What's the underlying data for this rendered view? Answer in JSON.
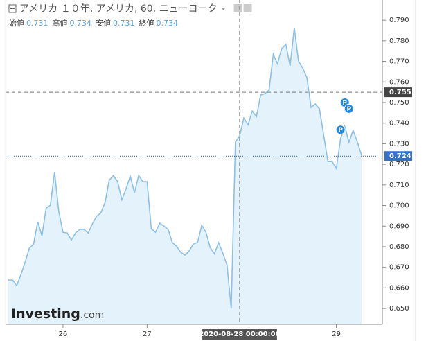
{
  "chart_data": {
    "type": "area",
    "title": "アメリカ １０年, アメリカ, 60, ニューヨーク",
    "ohlc": [
      {
        "name": "始値",
        "value": 0.731
      },
      {
        "name": "高値",
        "value": 0.734
      },
      {
        "name": "安値",
        "value": 0.731
      },
      {
        "name": "終値",
        "value": 0.734
      }
    ],
    "logo": "Investing",
    "logo_suffix": ".com",
    "categories": [
      null,
      null,
      null,
      null,
      null,
      null,
      null,
      null,
      null,
      null,
      null,
      null,
      null,
      "26",
      null,
      null,
      null,
      null,
      null,
      null,
      null,
      null,
      null,
      null,
      null,
      null,
      null,
      null,
      null,
      null,
      null,
      null,
      null,
      "27",
      null,
      null,
      null,
      null,
      null,
      null,
      null,
      null,
      null,
      null,
      null,
      null,
      null,
      null,
      null,
      null,
      null,
      null,
      null,
      null,
      null,
      "2020-08-28 00:00:00",
      null,
      null,
      null,
      null,
      null,
      null,
      null,
      null,
      null,
      null,
      null,
      null,
      null,
      null,
      null,
      null,
      null,
      null,
      null,
      null,
      null,
      null,
      "29",
      null,
      null,
      null,
      null,
      null,
      null
    ],
    "values": [
      0.6638,
      0.6638,
      0.6611,
      0.6665,
      0.6725,
      0.6793,
      0.6813,
      0.6921,
      0.6853,
      0.6988,
      0.7001,
      0.7163,
      0.6971,
      0.687,
      0.6867,
      0.6833,
      0.6867,
      0.6884,
      0.6884,
      0.6867,
      0.6911,
      0.6948,
      0.6964,
      0.7015,
      0.7123,
      0.7146,
      0.7116,
      0.7028,
      0.7082,
      0.7143,
      0.7062,
      0.7146,
      0.7116,
      0.7116,
      0.6887,
      0.687,
      0.6914,
      0.69,
      0.6884,
      0.682,
      0.6803,
      0.6773,
      0.6759,
      0.6779,
      0.6813,
      0.682,
      0.6904,
      0.687,
      0.6796,
      0.6766,
      0.682,
      0.6769,
      0.6712,
      0.65,
      0.7308,
      0.7338,
      0.7425,
      0.7392,
      0.7459,
      0.7432,
      0.7537,
      0.7543,
      0.756,
      0.7735,
      0.7688,
      0.7762,
      0.7782,
      0.7678,
      0.7863,
      0.7701,
      0.7668,
      0.7621,
      0.7476,
      0.7493,
      0.7469,
      0.7341,
      0.7213,
      0.7213,
      0.718,
      0.7324,
      0.7385,
      0.7308,
      0.7365,
      0.7308,
      0.7244
    ],
    "color": "#8cc0e8",
    "fill": "#e4f2fb",
    "ylim": [
      0.6423,
      0.7998
    ],
    "yticks": [
      {
        "value": 0.65,
        "label": "0.650"
      },
      {
        "value": 0.66,
        "label": "0.660"
      },
      {
        "value": 0.67,
        "label": "0.670"
      },
      {
        "value": 0.68,
        "label": "0.680"
      },
      {
        "value": 0.69,
        "label": "0.690"
      },
      {
        "value": 0.7,
        "label": "0.700"
      },
      {
        "value": 0.71,
        "label": "0.710"
      },
      {
        "value": 0.72,
        "label": "0.720"
      },
      {
        "value": 0.73,
        "label": "0.730"
      },
      {
        "value": 0.74,
        "label": "0.740"
      },
      {
        "value": 0.75,
        "label": "0.750"
      },
      {
        "value": 0.76,
        "label": "0.760"
      },
      {
        "value": 0.77,
        "label": "0.770"
      },
      {
        "value": 0.78,
        "label": "0.780"
      },
      {
        "value": 0.79,
        "label": "0.790"
      }
    ],
    "crosshair": {
      "category": 55,
      "value": 0.755
    },
    "last_price": 0.724,
    "markers": [
      {
        "label": "P",
        "at": 80,
        "value": 0.75
      },
      {
        "label": "P",
        "at": 81,
        "value": 0.747
      },
      {
        "label": "P",
        "at": 79,
        "value": 0.7368
      }
    ]
  }
}
